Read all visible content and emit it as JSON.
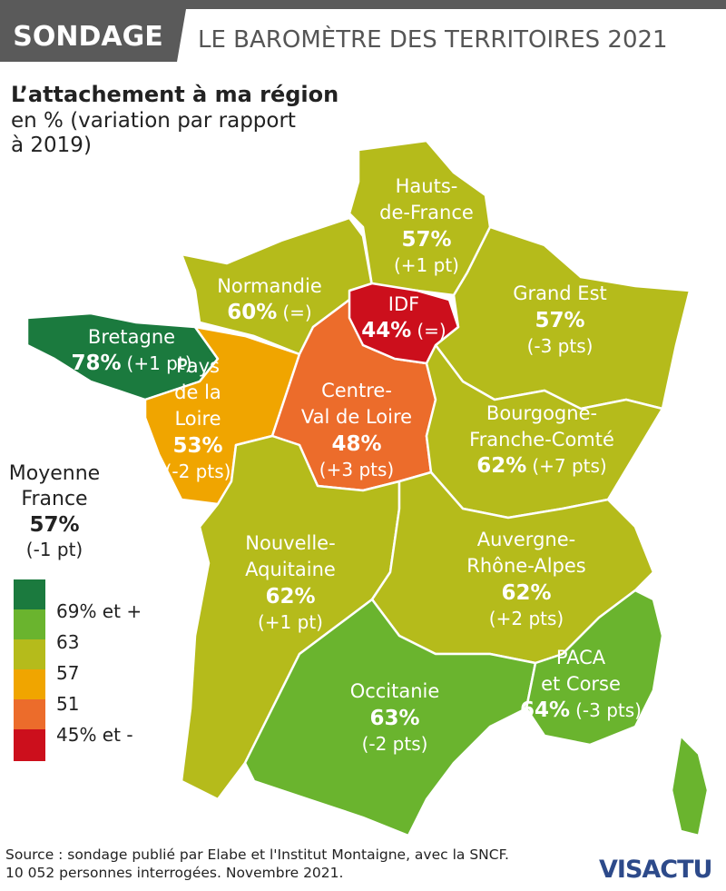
{
  "header": {
    "tag": "SONDAGE",
    "title": "LE BAROMÈTRE DES TERRITOIRES 2021"
  },
  "subtitle": {
    "lines": [
      "L’attachement à ma région",
      "en % (variation par rapport",
      "à 2019)"
    ]
  },
  "regions": [
    {
      "name_lines": [
        "Hauts-",
        "de-France"
      ],
      "value": "57%",
      "change": "(+1 pt)"
    },
    {
      "name_lines": [
        "Normandie"
      ],
      "value": "60%",
      "change": "(=)"
    },
    {
      "name_lines": [
        "IDF"
      ],
      "value": "44%",
      "change": "(=)"
    },
    {
      "name_lines": [
        "Grand Est"
      ],
      "value": "57%",
      "change": "(-3 pts)"
    },
    {
      "name_lines": [
        "Bretagne"
      ],
      "value": "78%",
      "change": "(+1 pt)"
    },
    {
      "name_lines": [
        "Pays",
        "de la",
        "Loire"
      ],
      "value": "53%",
      "change": "(-2 pts)"
    },
    {
      "name_lines": [
        "Centre-",
        "Val de Loire"
      ],
      "value": "48%",
      "change": "(+3 pts)"
    },
    {
      "name_lines": [
        "Bourgogne-",
        "Franche-Comté"
      ],
      "value": "62%",
      "change": "(+7 pts)"
    },
    {
      "name_lines": [
        "Nouvelle-",
        "Aquitaine"
      ],
      "value": "62%",
      "change": "(+1 pt)"
    },
    {
      "name_lines": [
        "Auvergne-",
        "Rhône-Alpes"
      ],
      "value": "62%",
      "change": "(+2 pts)"
    },
    {
      "name_lines": [
        "Occitanie"
      ],
      "value": "63%",
      "change": "(-2 pts)"
    },
    {
      "name_lines": [
        "PACA",
        "et Corse"
      ],
      "value": "64%",
      "change": "(-3 pts)"
    }
  ],
  "average": {
    "lines": [
      "Moyenne",
      "France"
    ],
    "value": "57%",
    "change": "(-1 pt)"
  },
  "legend": [
    "69% et +",
    "63",
    "57",
    "51",
    "45% et -"
  ],
  "source": [
    "Source : sondage publié par Elabe et l'Institut Montaigne, avec la SNCF.",
    "10 052 personnes interrogées. Novembre 2021."
  ],
  "logo": "VISACTU"
}
